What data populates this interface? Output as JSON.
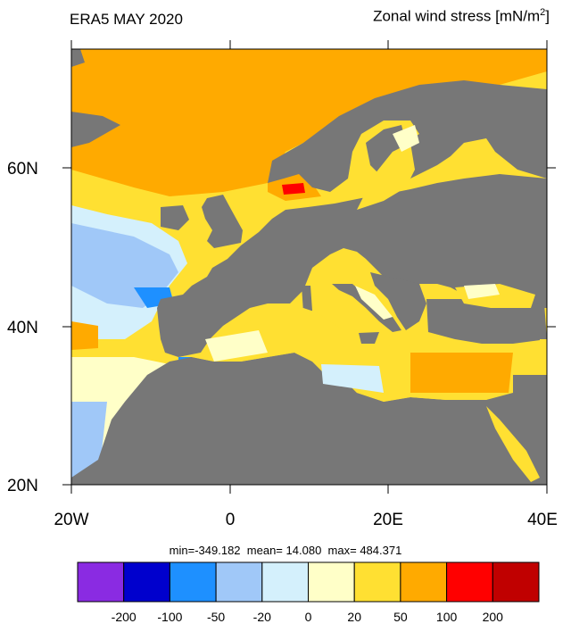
{
  "title": {
    "left": "ERA5 MAY 2020",
    "right_text": "Zonal wind stress [mN/m",
    "right_sup": "2",
    "right_close": "]"
  },
  "axes": {
    "lat_labels": [
      "60N",
      "40N",
      "20N"
    ],
    "lon_labels": [
      "20W",
      "0",
      "20E",
      "40E"
    ]
  },
  "stats": {
    "min_label": "min=",
    "min": "-349.182",
    "mean_label": "mean=",
    "mean": "14.080",
    "max_label": "max=",
    "max": "484.371"
  },
  "colorbar": {
    "colors": [
      "#8a2be2",
      "#0000cd",
      "#1e90ff",
      "#a0c8f8",
      "#d4f0fc",
      "#ffffc8",
      "#ffe032",
      "#ffaa00",
      "#ff0000",
      "#c00000"
    ],
    "tick_labels": [
      "-200",
      "-100",
      "-50",
      "-20",
      "0",
      "20",
      "50",
      "100",
      "200"
    ]
  },
  "map_colors": {
    "land": "#777777",
    "pos_50_100": "#ffaa00",
    "pos_20_50": "#ffe032",
    "pos_0_20": "#ffffc8",
    "neg_0_20": "#d4f0fc",
    "neg_20_50": "#a0c8f8",
    "neg_50_100": "#1e90ff",
    "pos_100_200": "#ff0000"
  }
}
